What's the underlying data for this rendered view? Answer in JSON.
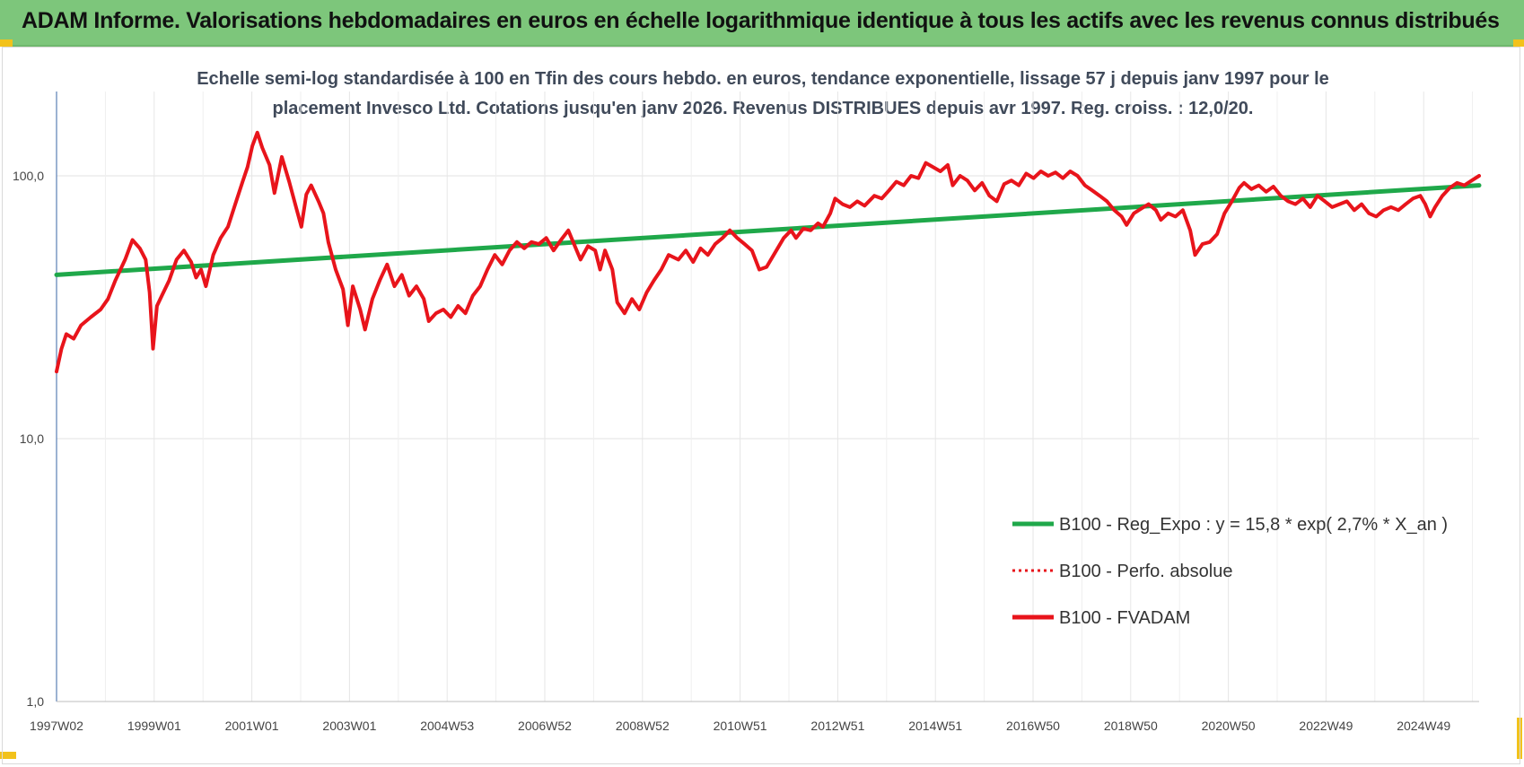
{
  "header": {
    "title": "ADAM Informe. Valorisations hebdomadaires en euros en échelle logarithmique identique à tous les actifs avec les revenus connus distribués"
  },
  "chart_data": {
    "type": "line",
    "title": "",
    "subtitle_line1": "Echelle semi-log standardisée à 100 en Tfin des cours hebdo. en euros, tendance exponentielle, lissage 57 j depuis janv 1997 pour le",
    "subtitle_line2": "placement Invesco Ltd. Cotations jusqu'en janv 2026. Revenus DISTRIBUES depuis avr 1997. Reg. croiss. : 12,0/20.",
    "y_scale": "log",
    "ylim": [
      1,
      200
    ],
    "y_ticks": [
      {
        "value": 1,
        "label": "1,0"
      },
      {
        "value": 10,
        "label": "10,0"
      },
      {
        "value": 100,
        "label": "100,0"
      }
    ],
    "x_ticks": [
      "1997W02",
      "1999W01",
      "2001W01",
      "2003W01",
      "2004W53",
      "2006W52",
      "2008W52",
      "2010W51",
      "2012W51",
      "2014W51",
      "2016W50",
      "2018W50",
      "2020W50",
      "2022W49",
      "2024W49"
    ],
    "x_range_years": [
      1997.0,
      2026.05
    ],
    "grid": "vertical and horizontal",
    "legend_position": "bottom-right",
    "series": [
      {
        "name": "B100 - Reg_Expo : y = 15,8 * exp( 2,7% *  X_an )",
        "color": "#1fa84a",
        "style": "solid",
        "points": [
          [
            1997.0,
            42
          ],
          [
            2026.05,
            92
          ]
        ]
      },
      {
        "name": "B100 - Perfo. absolue",
        "color": "#e8141b",
        "style": "dotted",
        "points": []
      },
      {
        "name": "B100 - FVADAM",
        "color": "#e8141b",
        "style": "solid",
        "points": [
          [
            1997.0,
            18
          ],
          [
            1997.1,
            22
          ],
          [
            1997.2,
            25
          ],
          [
            1997.35,
            24
          ],
          [
            1997.5,
            27
          ],
          [
            1997.7,
            29
          ],
          [
            1997.9,
            31
          ],
          [
            1998.05,
            34
          ],
          [
            1998.2,
            40
          ],
          [
            1998.4,
            48
          ],
          [
            1998.55,
            57
          ],
          [
            1998.7,
            53
          ],
          [
            1998.82,
            48
          ],
          [
            1998.9,
            36
          ],
          [
            1998.97,
            22
          ],
          [
            1999.05,
            32
          ],
          [
            1999.15,
            35
          ],
          [
            1999.3,
            40
          ],
          [
            1999.45,
            48
          ],
          [
            1999.6,
            52
          ],
          [
            1999.75,
            47
          ],
          [
            1999.85,
            41
          ],
          [
            1999.95,
            44
          ],
          [
            2000.05,
            38
          ],
          [
            2000.2,
            50
          ],
          [
            2000.35,
            58
          ],
          [
            2000.5,
            64
          ],
          [
            2000.65,
            78
          ],
          [
            2000.8,
            95
          ],
          [
            2000.9,
            108
          ],
          [
            2001.0,
            130
          ],
          [
            2001.1,
            146
          ],
          [
            2001.2,
            128
          ],
          [
            2001.35,
            110
          ],
          [
            2001.45,
            86
          ],
          [
            2001.6,
            118
          ],
          [
            2001.75,
            95
          ],
          [
            2001.9,
            75
          ],
          [
            2002.0,
            64
          ],
          [
            2002.1,
            85
          ],
          [
            2002.2,
            92
          ],
          [
            2002.35,
            80
          ],
          [
            2002.45,
            72
          ],
          [
            2002.55,
            56
          ],
          [
            2002.7,
            44
          ],
          [
            2002.85,
            37
          ],
          [
            2002.95,
            27
          ],
          [
            2003.05,
            38
          ],
          [
            2003.2,
            31
          ],
          [
            2003.3,
            26
          ],
          [
            2003.45,
            34
          ],
          [
            2003.6,
            40
          ],
          [
            2003.75,
            46
          ],
          [
            2003.9,
            38
          ],
          [
            2004.05,
            42
          ],
          [
            2004.2,
            35
          ],
          [
            2004.35,
            38
          ],
          [
            2004.5,
            34
          ],
          [
            2004.6,
            28
          ],
          [
            2004.75,
            30
          ],
          [
            2004.9,
            31
          ],
          [
            2005.05,
            29
          ],
          [
            2005.2,
            32
          ],
          [
            2005.35,
            30
          ],
          [
            2005.5,
            35
          ],
          [
            2005.65,
            38
          ],
          [
            2005.8,
            44
          ],
          [
            2005.95,
            50
          ],
          [
            2006.1,
            46
          ],
          [
            2006.25,
            52
          ],
          [
            2006.4,
            56
          ],
          [
            2006.55,
            53
          ],
          [
            2006.7,
            56
          ],
          [
            2006.85,
            55
          ],
          [
            2007.0,
            58
          ],
          [
            2007.15,
            52
          ],
          [
            2007.3,
            57
          ],
          [
            2007.45,
            62
          ],
          [
            2007.55,
            56
          ],
          [
            2007.7,
            48
          ],
          [
            2007.85,
            54
          ],
          [
            2008.0,
            52
          ],
          [
            2008.1,
            44
          ],
          [
            2008.2,
            52
          ],
          [
            2008.35,
            44
          ],
          [
            2008.45,
            33
          ],
          [
            2008.6,
            30
          ],
          [
            2008.75,
            34
          ],
          [
            2008.9,
            31
          ],
          [
            2009.05,
            36
          ],
          [
            2009.2,
            40
          ],
          [
            2009.35,
            44
          ],
          [
            2009.5,
            50
          ],
          [
            2009.7,
            48
          ],
          [
            2009.85,
            52
          ],
          [
            2010.0,
            47
          ],
          [
            2010.15,
            53
          ],
          [
            2010.3,
            50
          ],
          [
            2010.45,
            55
          ],
          [
            2010.6,
            58
          ],
          [
            2010.75,
            62
          ],
          [
            2010.9,
            58
          ],
          [
            2011.05,
            55
          ],
          [
            2011.2,
            52
          ],
          [
            2011.35,
            44
          ],
          [
            2011.5,
            45
          ],
          [
            2011.7,
            52
          ],
          [
            2011.85,
            58
          ],
          [
            2012.0,
            62
          ],
          [
            2012.1,
            58
          ],
          [
            2012.25,
            63
          ],
          [
            2012.4,
            62
          ],
          [
            2012.55,
            66
          ],
          [
            2012.65,
            64
          ],
          [
            2012.8,
            72
          ],
          [
            2012.9,
            82
          ],
          [
            2013.05,
            78
          ],
          [
            2013.2,
            76
          ],
          [
            2013.35,
            80
          ],
          [
            2013.5,
            77
          ],
          [
            2013.7,
            84
          ],
          [
            2013.85,
            82
          ],
          [
            2014.0,
            88
          ],
          [
            2014.15,
            95
          ],
          [
            2014.3,
            92
          ],
          [
            2014.45,
            100
          ],
          [
            2014.6,
            98
          ],
          [
            2014.75,
            112
          ],
          [
            2014.9,
            108
          ],
          [
            2015.05,
            104
          ],
          [
            2015.2,
            110
          ],
          [
            2015.3,
            92
          ],
          [
            2015.45,
            100
          ],
          [
            2015.6,
            96
          ],
          [
            2015.75,
            88
          ],
          [
            2015.9,
            94
          ],
          [
            2016.05,
            84
          ],
          [
            2016.2,
            80
          ],
          [
            2016.35,
            93
          ],
          [
            2016.5,
            96
          ],
          [
            2016.65,
            92
          ],
          [
            2016.8,
            102
          ],
          [
            2016.95,
            98
          ],
          [
            2017.1,
            104
          ],
          [
            2017.25,
            100
          ],
          [
            2017.4,
            103
          ],
          [
            2017.55,
            98
          ],
          [
            2017.7,
            104
          ],
          [
            2017.85,
            100
          ],
          [
            2018.0,
            92
          ],
          [
            2018.15,
            88
          ],
          [
            2018.3,
            84
          ],
          [
            2018.45,
            80
          ],
          [
            2018.6,
            74
          ],
          [
            2018.75,
            70
          ],
          [
            2018.85,
            65
          ],
          [
            2019.0,
            72
          ],
          [
            2019.15,
            75
          ],
          [
            2019.3,
            78
          ],
          [
            2019.45,
            74
          ],
          [
            2019.55,
            68
          ],
          [
            2019.7,
            72
          ],
          [
            2019.85,
            70
          ],
          [
            2020.0,
            74
          ],
          [
            2020.15,
            62
          ],
          [
            2020.25,
            50
          ],
          [
            2020.4,
            55
          ],
          [
            2020.55,
            56
          ],
          [
            2020.7,
            60
          ],
          [
            2020.85,
            72
          ],
          [
            2021.0,
            80
          ],
          [
            2021.15,
            90
          ],
          [
            2021.25,
            94
          ],
          [
            2021.4,
            89
          ],
          [
            2021.55,
            92
          ],
          [
            2021.7,
            87
          ],
          [
            2021.85,
            91
          ],
          [
            2022.0,
            84
          ],
          [
            2022.15,
            80
          ],
          [
            2022.3,
            78
          ],
          [
            2022.45,
            82
          ],
          [
            2022.6,
            76
          ],
          [
            2022.75,
            84
          ],
          [
            2022.9,
            80
          ],
          [
            2023.05,
            76
          ],
          [
            2023.2,
            78
          ],
          [
            2023.35,
            80
          ],
          [
            2023.5,
            74
          ],
          [
            2023.65,
            78
          ],
          [
            2023.8,
            72
          ],
          [
            2023.95,
            70
          ],
          [
            2024.1,
            74
          ],
          [
            2024.25,
            76
          ],
          [
            2024.4,
            74
          ],
          [
            2024.55,
            78
          ],
          [
            2024.7,
            82
          ],
          [
            2024.85,
            84
          ],
          [
            2024.95,
            78
          ],
          [
            2025.05,
            70
          ],
          [
            2025.15,
            76
          ],
          [
            2025.3,
            84
          ],
          [
            2025.45,
            90
          ],
          [
            2025.6,
            94
          ],
          [
            2025.75,
            92
          ],
          [
            2025.9,
            96
          ],
          [
            2026.05,
            100
          ]
        ]
      }
    ]
  }
}
